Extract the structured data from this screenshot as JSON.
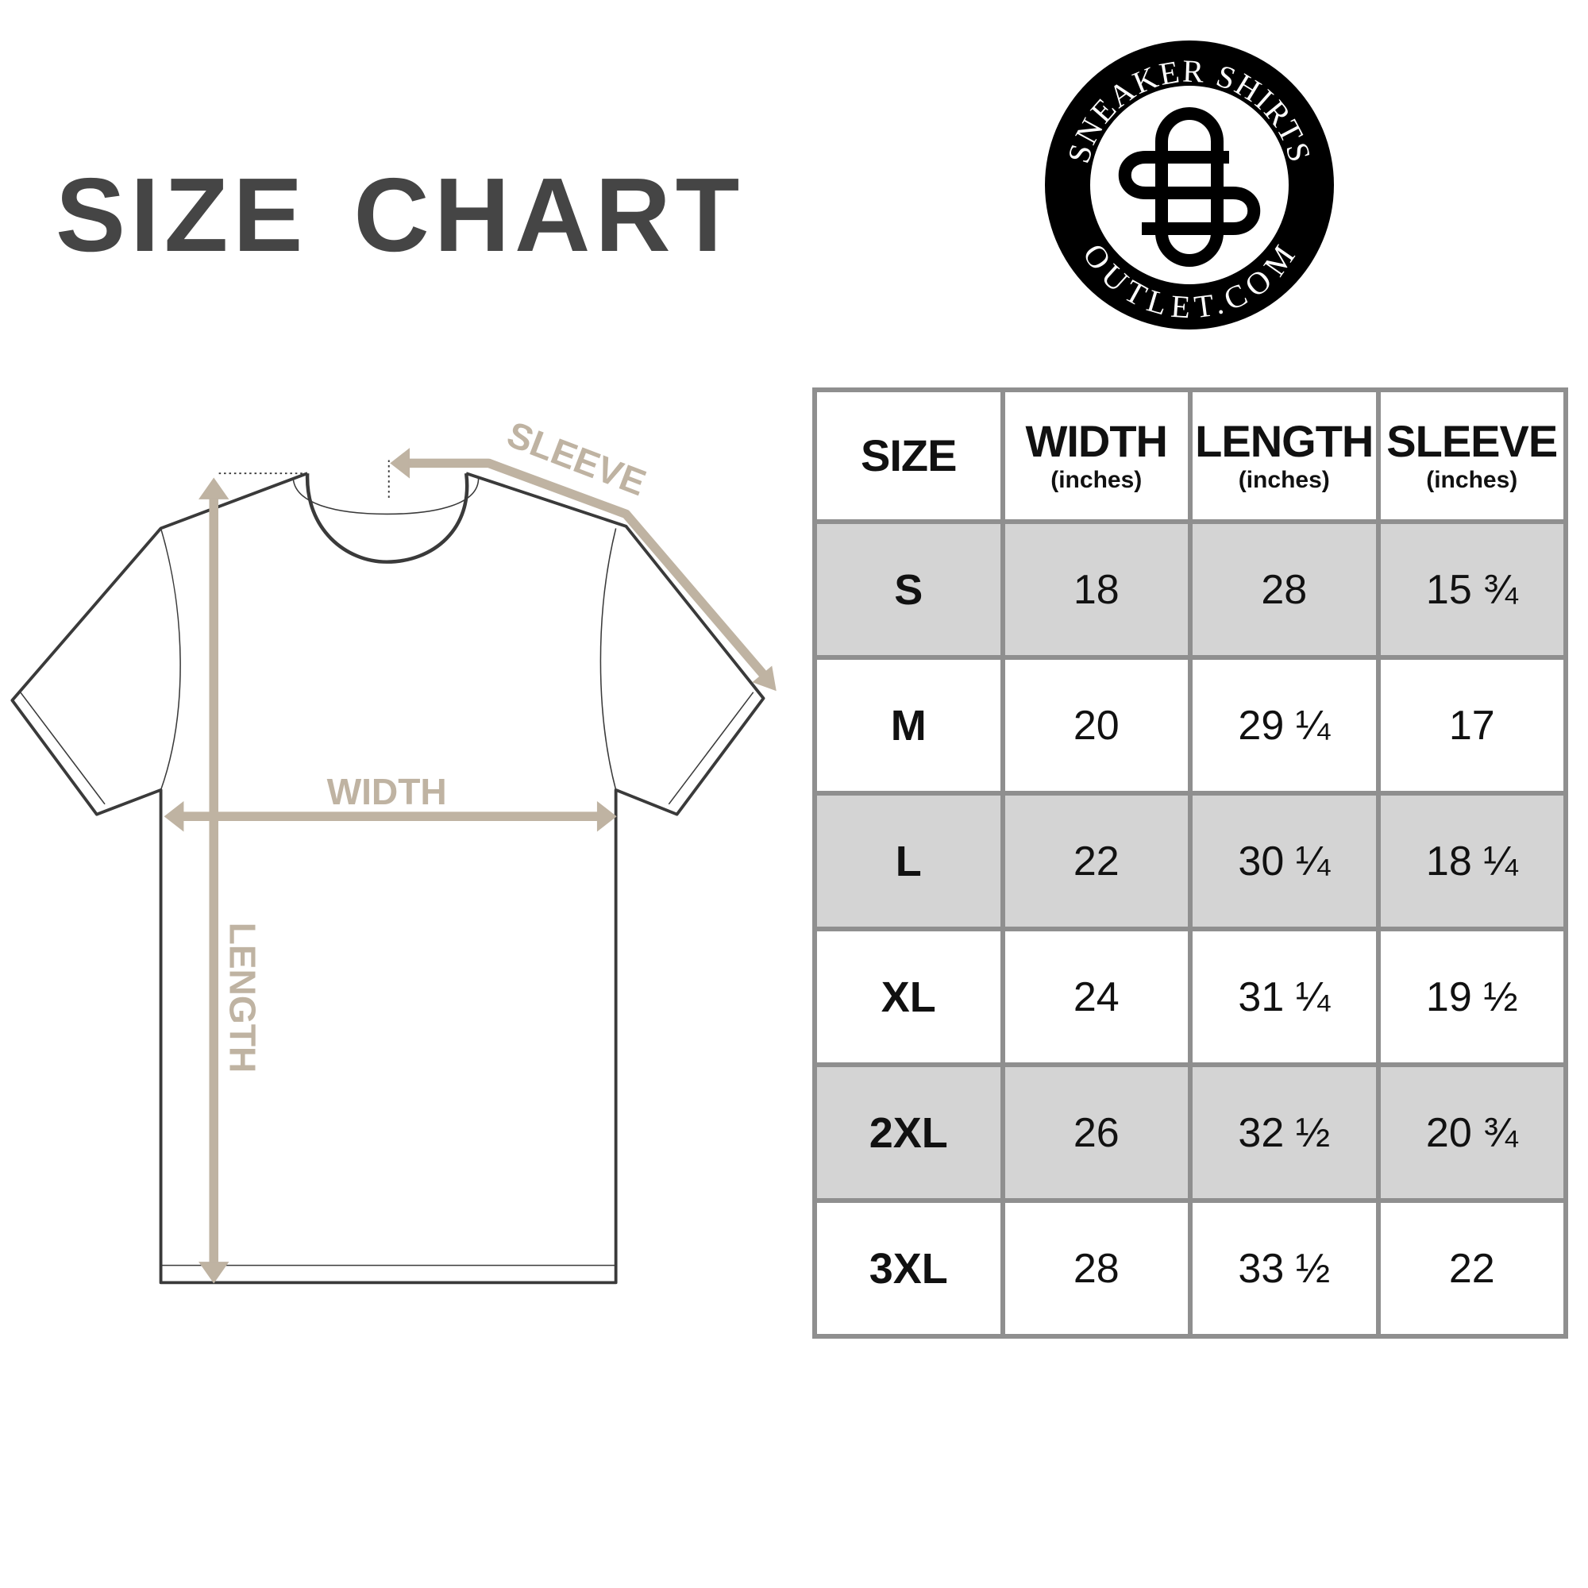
{
  "title": {
    "word1": "SIZE",
    "word2": "CHART"
  },
  "logo": {
    "top_text": "SNEAKER SHIRTS",
    "bottom_text": "OUTLET.COM",
    "monogram": "SO"
  },
  "diagram": {
    "labels": {
      "sleeve": "SLEEVE",
      "width": "WIDTH",
      "length": "LENGTH"
    },
    "colors": {
      "arrow": "#bfb3a2",
      "outline": "#3a3a3a"
    }
  },
  "table": {
    "headers": [
      {
        "label": "SIZE",
        "unit": ""
      },
      {
        "label": "WIDTH",
        "unit": "(inches)"
      },
      {
        "label": "LENGTH",
        "unit": "(inches)"
      },
      {
        "label": "SLEEVE",
        "unit": "(inches)"
      }
    ],
    "rows": [
      [
        "S",
        "18",
        "28",
        "15 ¾"
      ],
      [
        "M",
        "20",
        "29 ¼",
        "17"
      ],
      [
        "L",
        "22",
        "30 ¼",
        "18 ¼"
      ],
      [
        "XL",
        "24",
        "31 ¼",
        "19 ½"
      ],
      [
        "2XL",
        "26",
        "32 ½",
        "20 ¾"
      ],
      [
        "3XL",
        "28",
        "33 ½",
        "22"
      ]
    ],
    "colors": {
      "shade": "#d4d4d4",
      "border": "#8f8f8f"
    }
  }
}
